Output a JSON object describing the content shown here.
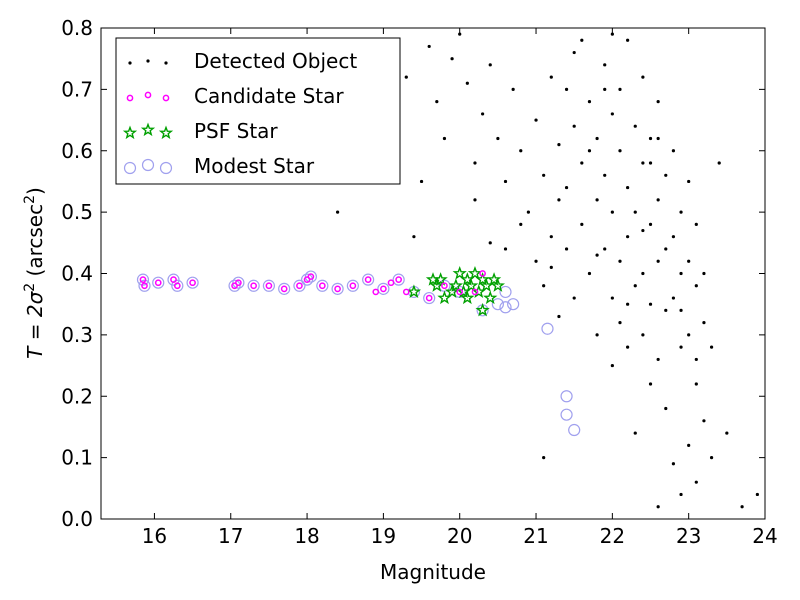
{
  "chart_data": {
    "type": "scatter",
    "title": "",
    "xlabel": "Magnitude",
    "ylabel_parts": {
      "main": "T = 2σ",
      "exp": "2",
      "unit": " (arcsec",
      "unit_exp": "2",
      "close": ")"
    },
    "xlim": [
      15.3,
      24.0
    ],
    "ylim": [
      0.0,
      0.8
    ],
    "x_ticks": [
      16,
      17,
      18,
      19,
      20,
      21,
      22,
      23,
      24
    ],
    "y_ticks": [
      0.0,
      0.1,
      0.2,
      0.3,
      0.4,
      0.5,
      0.6,
      0.7,
      0.8
    ],
    "y_tick_labels": [
      "0.0",
      "0.1",
      "0.2",
      "0.3",
      "0.4",
      "0.5",
      "0.6",
      "0.7",
      "0.8"
    ],
    "grid": false,
    "legend_position": "top-left",
    "series": [
      {
        "name": "Detected Object",
        "marker": "dot",
        "color": "#000000",
        "points": [
          [
            18.4,
            0.5
          ],
          [
            19.2,
            0.78
          ],
          [
            19.3,
            0.72
          ],
          [
            19.6,
            0.77
          ],
          [
            19.8,
            0.62
          ],
          [
            19.5,
            0.55
          ],
          [
            19.7,
            0.68
          ],
          [
            19.9,
            0.75
          ],
          [
            20.0,
            0.79
          ],
          [
            20.1,
            0.71
          ],
          [
            20.2,
            0.58
          ],
          [
            20.3,
            0.66
          ],
          [
            20.4,
            0.74
          ],
          [
            20.5,
            0.62
          ],
          [
            20.6,
            0.55
          ],
          [
            20.7,
            0.7
          ],
          [
            20.8,
            0.6
          ],
          [
            20.9,
            0.5
          ],
          [
            20.6,
            0.44
          ],
          [
            20.8,
            0.48
          ],
          [
            21.0,
            0.42
          ],
          [
            21.0,
            0.65
          ],
          [
            21.1,
            0.56
          ],
          [
            21.1,
            0.38
          ],
          [
            21.2,
            0.72
          ],
          [
            21.2,
            0.46
          ],
          [
            21.3,
            0.61
          ],
          [
            21.3,
            0.52
          ],
          [
            21.4,
            0.7
          ],
          [
            21.4,
            0.44
          ],
          [
            21.5,
            0.64
          ],
          [
            21.5,
            0.36
          ],
          [
            21.5,
            0.76
          ],
          [
            21.6,
            0.58
          ],
          [
            21.6,
            0.48
          ],
          [
            21.7,
            0.68
          ],
          [
            21.7,
            0.4
          ],
          [
            21.8,
            0.62
          ],
          [
            21.8,
            0.52
          ],
          [
            21.8,
            0.3
          ],
          [
            21.9,
            0.74
          ],
          [
            21.9,
            0.56
          ],
          [
            21.9,
            0.44
          ],
          [
            22.0,
            0.66
          ],
          [
            22.0,
            0.5
          ],
          [
            22.0,
            0.36
          ],
          [
            22.0,
            0.25
          ],
          [
            22.1,
            0.7
          ],
          [
            22.1,
            0.6
          ],
          [
            22.1,
            0.42
          ],
          [
            22.1,
            0.32
          ],
          [
            22.2,
            0.78
          ],
          [
            22.2,
            0.54
          ],
          [
            22.2,
            0.46
          ],
          [
            22.2,
            0.28
          ],
          [
            22.3,
            0.64
          ],
          [
            22.3,
            0.5
          ],
          [
            22.3,
            0.38
          ],
          [
            22.3,
            0.14
          ],
          [
            22.4,
            0.72
          ],
          [
            22.4,
            0.58
          ],
          [
            22.4,
            0.4
          ],
          [
            22.4,
            0.3
          ],
          [
            22.5,
            0.62
          ],
          [
            22.5,
            0.48
          ],
          [
            22.5,
            0.35
          ],
          [
            22.5,
            0.22
          ],
          [
            22.6,
            0.68
          ],
          [
            22.6,
            0.52
          ],
          [
            22.6,
            0.42
          ],
          [
            22.6,
            0.26
          ],
          [
            22.6,
            0.02
          ],
          [
            22.7,
            0.56
          ],
          [
            22.7,
            0.44
          ],
          [
            22.7,
            0.34
          ],
          [
            22.7,
            0.18
          ],
          [
            22.8,
            0.6
          ],
          [
            22.8,
            0.46
          ],
          [
            22.8,
            0.36
          ],
          [
            22.8,
            0.09
          ],
          [
            22.9,
            0.5
          ],
          [
            22.9,
            0.4
          ],
          [
            22.9,
            0.28
          ],
          [
            22.9,
            0.04
          ],
          [
            23.0,
            0.55
          ],
          [
            23.0,
            0.42
          ],
          [
            23.0,
            0.3
          ],
          [
            23.0,
            0.12
          ],
          [
            23.1,
            0.48
          ],
          [
            23.1,
            0.38
          ],
          [
            23.1,
            0.22
          ],
          [
            23.1,
            0.06
          ],
          [
            23.2,
            0.4
          ],
          [
            23.2,
            0.32
          ],
          [
            23.2,
            0.16
          ],
          [
            23.3,
            0.28
          ],
          [
            23.3,
            0.1
          ],
          [
            23.4,
            0.58
          ],
          [
            23.5,
            0.14
          ],
          [
            23.7,
            0.02
          ],
          [
            23.9,
            0.04
          ],
          [
            21.1,
            0.1
          ],
          [
            21.3,
            0.33
          ],
          [
            21.9,
            0.7
          ],
          [
            21.6,
            0.78
          ],
          [
            22.0,
            0.79
          ],
          [
            20.4,
            0.45
          ],
          [
            20.2,
            0.52
          ],
          [
            19.4,
            0.46
          ],
          [
            19.0,
            0.64
          ],
          [
            21.4,
            0.54
          ],
          [
            22.6,
            0.62
          ],
          [
            21.8,
            0.43
          ],
          [
            22.4,
            0.47
          ],
          [
            21.2,
            0.41
          ],
          [
            22.9,
            0.34
          ],
          [
            23.1,
            0.26
          ],
          [
            22.2,
            0.35
          ],
          [
            21.7,
            0.6
          ],
          [
            22.5,
            0.58
          ]
        ]
      },
      {
        "name": "Candidate Star",
        "marker": "circle",
        "color": "#ff00ff",
        "points": [
          [
            15.85,
            0.39
          ],
          [
            15.87,
            0.38
          ],
          [
            16.05,
            0.385
          ],
          [
            16.25,
            0.39
          ],
          [
            16.3,
            0.38
          ],
          [
            16.5,
            0.385
          ],
          [
            17.05,
            0.38
          ],
          [
            17.1,
            0.385
          ],
          [
            17.3,
            0.38
          ],
          [
            17.5,
            0.38
          ],
          [
            17.7,
            0.375
          ],
          [
            17.9,
            0.38
          ],
          [
            18.0,
            0.39
          ],
          [
            18.05,
            0.395
          ],
          [
            18.2,
            0.38
          ],
          [
            18.4,
            0.375
          ],
          [
            18.6,
            0.38
          ],
          [
            18.8,
            0.39
          ],
          [
            18.9,
            0.37
          ],
          [
            19.0,
            0.375
          ],
          [
            19.1,
            0.385
          ],
          [
            19.2,
            0.39
          ],
          [
            19.3,
            0.37
          ],
          [
            19.6,
            0.36
          ],
          [
            19.8,
            0.38
          ],
          [
            20.0,
            0.37
          ],
          [
            20.2,
            0.37
          ],
          [
            20.3,
            0.4
          ]
        ]
      },
      {
        "name": "PSF Star",
        "marker": "star",
        "color": "#00a000",
        "points": [
          [
            19.4,
            0.37
          ],
          [
            19.7,
            0.38
          ],
          [
            19.75,
            0.39
          ],
          [
            19.8,
            0.36
          ],
          [
            19.9,
            0.37
          ],
          [
            19.95,
            0.38
          ],
          [
            20.0,
            0.4
          ],
          [
            20.05,
            0.37
          ],
          [
            20.1,
            0.39
          ],
          [
            20.15,
            0.38
          ],
          [
            20.2,
            0.4
          ],
          [
            20.25,
            0.37
          ],
          [
            20.3,
            0.39
          ],
          [
            20.3,
            0.34
          ],
          [
            20.35,
            0.38
          ],
          [
            20.4,
            0.36
          ],
          [
            20.45,
            0.39
          ],
          [
            20.5,
            0.38
          ],
          [
            19.65,
            0.39
          ],
          [
            20.1,
            0.36
          ]
        ]
      },
      {
        "name": "Modest Star",
        "marker": "open-circle",
        "color": "#a0a0ee",
        "points": [
          [
            15.85,
            0.39
          ],
          [
            15.87,
            0.38
          ],
          [
            16.05,
            0.385
          ],
          [
            16.25,
            0.39
          ],
          [
            16.3,
            0.38
          ],
          [
            16.5,
            0.385
          ],
          [
            17.05,
            0.38
          ],
          [
            17.1,
            0.385
          ],
          [
            17.3,
            0.38
          ],
          [
            17.5,
            0.38
          ],
          [
            17.7,
            0.375
          ],
          [
            17.9,
            0.38
          ],
          [
            18.0,
            0.39
          ],
          [
            18.05,
            0.395
          ],
          [
            18.2,
            0.38
          ],
          [
            18.4,
            0.375
          ],
          [
            18.6,
            0.38
          ],
          [
            18.8,
            0.39
          ],
          [
            19.0,
            0.375
          ],
          [
            19.2,
            0.39
          ],
          [
            19.4,
            0.37
          ],
          [
            19.6,
            0.36
          ],
          [
            19.8,
            0.38
          ],
          [
            20.0,
            0.37
          ],
          [
            20.3,
            0.34
          ],
          [
            20.5,
            0.35
          ],
          [
            20.6,
            0.37
          ],
          [
            20.6,
            0.345
          ],
          [
            20.7,
            0.35
          ],
          [
            21.15,
            0.31
          ],
          [
            21.4,
            0.2
          ],
          [
            21.4,
            0.17
          ],
          [
            21.5,
            0.145
          ]
        ]
      }
    ]
  }
}
